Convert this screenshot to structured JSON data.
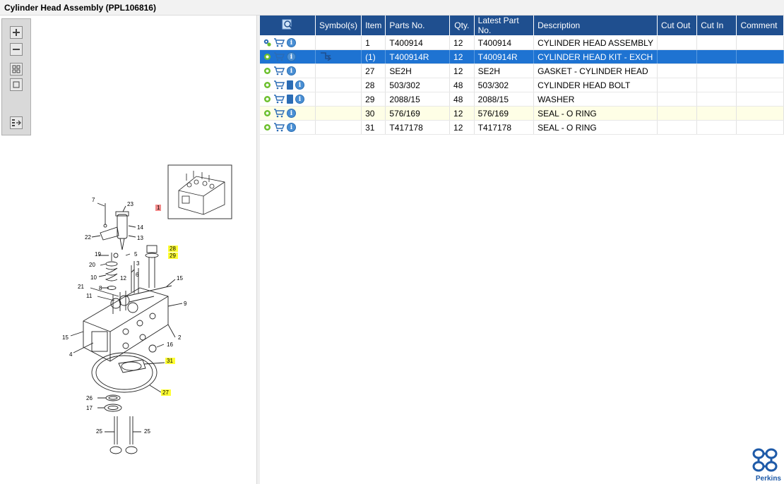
{
  "title": "Cylinder Head Assembly (PPL106816)",
  "toolbox": {
    "zoom_in": "zoom-in-icon",
    "zoom_out": "zoom-out-icon",
    "fit_all": "fit-all-icon",
    "fit_window": "fit-window-icon",
    "panel_toggle": "panel-toggle-icon"
  },
  "table": {
    "headers": {
      "search": "magnifier-icon",
      "symbols": "Symbol(s)",
      "item": "Item",
      "parts_no": "Parts No.",
      "qty": "Qty.",
      "latest": "Latest Part No.",
      "description": "Description",
      "cut_out": "Cut Out",
      "cut_in": "Cut In",
      "comment": "Comment"
    },
    "rows": [
      {
        "item": "1",
        "parts_no": "T400914",
        "qty": "12",
        "latest": "T400914",
        "description": "CYLINDER HEAD ASSEMBLY",
        "book": false,
        "symbol": false
      },
      {
        "item": "(1)",
        "parts_no": "T400914R",
        "qty": "12",
        "latest": "T400914R",
        "description": "CYLINDER HEAD KIT - EXCH",
        "book": false,
        "symbol": true
      },
      {
        "item": "27",
        "parts_no": "SE2H",
        "qty": "12",
        "latest": "SE2H",
        "description": "GASKET - CYLINDER HEAD",
        "book": false,
        "symbol": false
      },
      {
        "item": "28",
        "parts_no": "503/302",
        "qty": "48",
        "latest": "503/302",
        "description": "CYLINDER HEAD BOLT",
        "book": true,
        "symbol": false
      },
      {
        "item": "29",
        "parts_no": "2088/15",
        "qty": "48",
        "latest": "2088/15",
        "description": "WASHER",
        "book": true,
        "symbol": false
      },
      {
        "item": "30",
        "parts_no": "576/169",
        "qty": "12",
        "latest": "576/169",
        "description": "SEAL - O RING",
        "book": false,
        "symbol": false
      },
      {
        "item": "31",
        "parts_no": "T417178",
        "qty": "12",
        "latest": "T417178",
        "description": "SEAL - O RING",
        "book": false,
        "symbol": false
      }
    ]
  },
  "diagram": {
    "labels": [
      "7",
      "23",
      "14",
      "22",
      "13",
      "1",
      "28",
      "29",
      "19",
      "5",
      "20",
      "3",
      "6",
      "10",
      "12",
      "15",
      "21",
      "8",
      "11",
      "9",
      "15",
      "2",
      "4",
      "16",
      "31",
      "27",
      "26",
      "17",
      "25",
      "25"
    ],
    "highlighted": [
      "28",
      "29",
      "31",
      "27"
    ],
    "selected": "1"
  },
  "brand": {
    "name": "Perkins",
    "color": "#1e5aa8"
  },
  "colors": {
    "header": "#1f4f8f",
    "selected_row": "#1e73d2",
    "highlight_row": "#fefee6"
  }
}
